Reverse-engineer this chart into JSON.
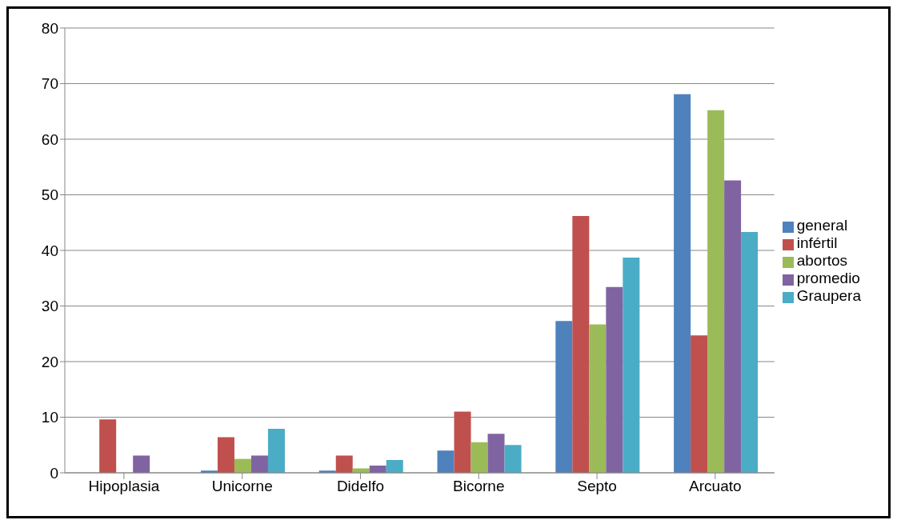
{
  "chart_data": {
    "type": "bar",
    "categories": [
      "Hipoplasia",
      "Unicorne",
      "Didelfo",
      "Bicorne",
      "Septo",
      "Arcuato"
    ],
    "series": [
      {
        "name": "general",
        "color": "#4f81bd",
        "values": [
          null,
          0.4,
          0.4,
          4.0,
          27.3,
          68.1
        ]
      },
      {
        "name": "infértil",
        "color": "#c0504d",
        "values": [
          9.6,
          6.4,
          3.1,
          11.0,
          46.2,
          24.7
        ]
      },
      {
        "name": "abortos",
        "color": "#9bbb59",
        "values": [
          null,
          2.5,
          0.8,
          5.5,
          26.7,
          65.2
        ]
      },
      {
        "name": "promedio",
        "color": "#8064a2",
        "values": [
          3.1,
          3.1,
          1.3,
          7.0,
          33.4,
          52.6
        ]
      },
      {
        "name": "Graupera",
        "color": "#4bacc6",
        "values": [
          null,
          7.9,
          2.3,
          5.0,
          38.7,
          43.3
        ]
      }
    ],
    "ylim": [
      0,
      80
    ],
    "yticks": [
      0,
      10,
      20,
      30,
      40,
      50,
      60,
      70,
      80
    ],
    "grid": "y",
    "legend": "right"
  }
}
